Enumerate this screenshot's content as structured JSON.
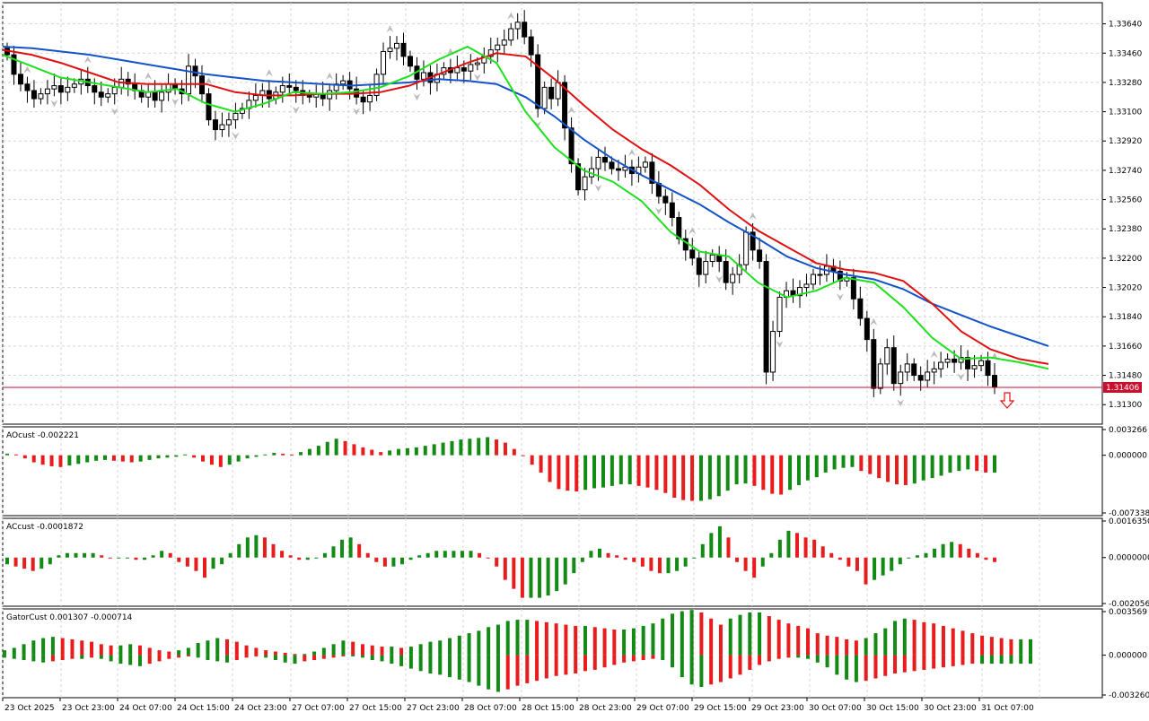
{
  "chart_data": {
    "type": "candlestick",
    "symbol_price_tag": "1.31406",
    "current_price": 1.31406,
    "price_axis": {
      "range": [
        1.3118,
        1.3377
      ],
      "ticks": [
        "1.33640",
        "1.33460",
        "1.33280",
        "1.33100",
        "1.32920",
        "1.32740",
        "1.32560",
        "1.32380",
        "1.32200",
        "1.32020",
        "1.31840",
        "1.31660",
        "1.31480",
        "1.31300"
      ]
    },
    "time_labels": [
      "23 Oct 2025",
      "23 Oct 23:00",
      "24 Oct 07:00",
      "24 Oct 15:00",
      "24 Oct 23:00",
      "27 Oct 07:00",
      "27 Oct 15:00",
      "27 Oct 23:00",
      "28 Oct 07:00",
      "28 Oct 15:00",
      "28 Oct 23:00",
      "29 Oct 07:00",
      "29 Oct 15:00",
      "29 Oct 23:00",
      "30 Oct 07:00",
      "30 Oct 15:00",
      "30 Oct 23:00",
      "31 Oct 07:00"
    ],
    "ohlc_closes": [
      1.3345,
      1.3333,
      1.3327,
      1.3323,
      1.3318,
      1.3321,
      1.3324,
      1.3326,
      1.3322,
      1.3325,
      1.3327,
      1.333,
      1.3326,
      1.3322,
      1.3319,
      1.3321,
      1.3325,
      1.333,
      1.3327,
      1.3323,
      1.3319,
      1.3322,
      1.3317,
      1.3322,
      1.3327,
      1.3324,
      1.3321,
      1.3338,
      1.3332,
      1.3321,
      1.3305,
      1.3299,
      1.3302,
      1.3305,
      1.3309,
      1.3312,
      1.3317,
      1.332,
      1.3323,
      1.3318,
      1.3322,
      1.3326,
      1.3325,
      1.3323,
      1.332,
      1.3319,
      1.3321,
      1.3318,
      1.3323,
      1.3327,
      1.3329,
      1.3324,
      1.3319,
      1.3316,
      1.332,
      1.3333,
      1.3347,
      1.3349,
      1.3352,
      1.3344,
      1.3338,
      1.333,
      1.3334,
      1.3328,
      1.3333,
      1.3337,
      1.3334,
      1.3337,
      1.3335,
      1.3339,
      1.334,
      1.3344,
      1.3348,
      1.3351,
      1.3354,
      1.3361,
      1.3365,
      1.3356,
      1.3345,
      1.3312,
      1.3325,
      1.3318,
      1.3328,
      1.33,
      1.3278,
      1.3262,
      1.327,
      1.3275,
      1.3282,
      1.3279,
      1.3275,
      1.3274,
      1.3276,
      1.3272,
      1.3276,
      1.3279,
      1.3266,
      1.3258,
      1.3254,
      1.3245,
      1.3232,
      1.3225,
      1.322,
      1.321,
      1.3218,
      1.3222,
      1.3218,
      1.3205,
      1.321,
      1.3216,
      1.3236,
      1.3225,
      1.3218,
      1.315,
      1.3175,
      1.3196,
      1.32,
      1.3197,
      1.3202,
      1.3204,
      1.321,
      1.321,
      1.3215,
      1.3212,
      1.3206,
      1.3208,
      1.3195,
      1.3183,
      1.317,
      1.314,
      1.3155,
      1.3165,
      1.3143,
      1.315,
      1.3155,
      1.3148,
      1.3145,
      1.315,
      1.3152,
      1.3156,
      1.3158,
      1.3156,
      1.3159,
      1.3152,
      1.3154,
      1.3157,
      1.3148,
      1.3141
    ],
    "moving_averages": [
      {
        "color": "#1453c8",
        "values": [
          1.335,
          1.3349,
          1.3347,
          1.3345,
          1.3342,
          1.3339,
          1.3336,
          1.3333,
          1.3331,
          1.3329,
          1.3328,
          1.3327,
          1.3326,
          1.3327,
          1.3328,
          1.333,
          1.3329,
          1.3327,
          1.3319,
          1.3307,
          1.3293,
          1.3281,
          1.3271,
          1.3262,
          1.3253,
          1.3242,
          1.3232,
          1.3221,
          1.3214,
          1.321,
          1.3207,
          1.3201,
          1.3192,
          1.3185,
          1.3178,
          1.3172,
          1.3166
        ]
      },
      {
        "color": "#e01010",
        "values": [
          1.3348,
          1.3345,
          1.334,
          1.3334,
          1.3328,
          1.3327,
          1.3327,
          1.3327,
          1.3322,
          1.332,
          1.332,
          1.3321,
          1.3321,
          1.3322,
          1.3326,
          1.3333,
          1.334,
          1.3346,
          1.3344,
          1.333,
          1.3314,
          1.3299,
          1.3287,
          1.3277,
          1.3265,
          1.325,
          1.3237,
          1.3227,
          1.3217,
          1.3213,
          1.3211,
          1.3206,
          1.3192,
          1.3175,
          1.3164,
          1.3158,
          1.3155
        ]
      },
      {
        "color": "#1ee01e",
        "values": [
          1.3345,
          1.3338,
          1.3331,
          1.3328,
          1.3325,
          1.3322,
          1.3324,
          1.3315,
          1.331,
          1.3315,
          1.3322,
          1.3321,
          1.3322,
          1.3325,
          1.3332,
          1.3342,
          1.335,
          1.334,
          1.331,
          1.3288,
          1.3274,
          1.3267,
          1.3255,
          1.3236,
          1.3224,
          1.3221,
          1.3205,
          1.3196,
          1.32,
          1.3208,
          1.3205,
          1.319,
          1.3171,
          1.3158,
          1.3159,
          1.3156,
          1.3152
        ]
      }
    ],
    "subcharts": [
      {
        "label": "AOcust -0.002221",
        "ticks": [
          "0.003266",
          "0.000000",
          "-0.007338"
        ],
        "range": [
          -0.007338,
          0.003266
        ],
        "values": [
          0.0002,
          0.0001,
          -0.0004,
          -0.0009,
          -0.0012,
          -0.0014,
          -0.0015,
          -0.0013,
          -0.0011,
          -0.0009,
          -0.0007,
          -0.0006,
          -0.0007,
          -0.0008,
          -0.0009,
          -0.0008,
          -0.0006,
          -0.0004,
          -0.0003,
          -0.0002,
          0.0001,
          -0.0003,
          -0.0008,
          -0.0012,
          -0.0015,
          -0.0012,
          -0.0008,
          -0.0004,
          -0.0002,
          0.0001,
          0.0003,
          0.0002,
          0.0001,
          0.0004,
          0.0008,
          0.0012,
          0.0017,
          0.0021,
          0.0018,
          0.0014,
          0.001,
          0.0007,
          0.0004,
          0.0006,
          0.0008,
          0.0009,
          0.001,
          0.0012,
          0.0014,
          0.0016,
          0.0018,
          0.002,
          0.0021,
          0.0022,
          0.0023,
          0.002,
          0.0016,
          0.0008,
          0.0,
          -0.0012,
          -0.0022,
          -0.0034,
          -0.0043,
          -0.0045,
          -0.0046,
          -0.0044,
          -0.0042,
          -0.0041,
          -0.0039,
          -0.0037,
          -0.0037,
          -0.0039,
          -0.0041,
          -0.0044,
          -0.0048,
          -0.0054,
          -0.0057,
          -0.0058,
          -0.0058,
          -0.0056,
          -0.0052,
          -0.0045,
          -0.0037,
          -0.0036,
          -0.0039,
          -0.0044,
          -0.0049,
          -0.005,
          -0.0044,
          -0.0038,
          -0.0032,
          -0.0028,
          -0.0022,
          -0.0018,
          -0.0016,
          -0.0015,
          -0.002,
          -0.0024,
          -0.0029,
          -0.0034,
          -0.0037,
          -0.0038,
          -0.0036,
          -0.0032,
          -0.0029,
          -0.0026,
          -0.0022,
          -0.002,
          -0.0018,
          -0.002,
          -0.0022,
          -0.0022
        ]
      },
      {
        "label": "ACcust -0.0001872",
        "ticks": [
          "0.0016350",
          "0.0000000",
          "-0.0020568"
        ],
        "range": [
          -0.0020568,
          0.001635
        ],
        "values": [
          -0.0003,
          -0.0004,
          -0.0005,
          -0.0006,
          -0.0005,
          -0.0003,
          0.0001,
          0.0002,
          0.0002,
          0.0002,
          0.0002,
          0.0001,
          0.0,
          0.0,
          0.0,
          -0.0001,
          -0.0001,
          0.0001,
          0.0003,
          0.0002,
          -0.0002,
          -0.0004,
          -0.0006,
          -0.0009,
          -0.0005,
          -0.0003,
          0.0002,
          0.0006,
          0.0009,
          0.001,
          0.0009,
          0.0006,
          0.0003,
          0.0001,
          -0.0001,
          -0.0001,
          0.0,
          0.0002,
          0.0005,
          0.0008,
          0.0009,
          0.0006,
          0.0002,
          -0.0002,
          -0.0004,
          -0.0004,
          -0.0003,
          -0.0001,
          0.0001,
          0.0002,
          0.0003,
          0.0003,
          0.0003,
          0.0003,
          0.0003,
          0.0002,
          0.0,
          -0.0004,
          -0.001,
          -0.0014,
          -0.0018,
          -0.0018,
          -0.0018,
          -0.0017,
          -0.0015,
          -0.0012,
          -0.0007,
          -0.0002,
          0.0003,
          0.0004,
          0.0002,
          0.0001,
          -0.0001,
          -0.0002,
          -0.0004,
          -0.0006,
          -0.0007,
          -0.0007,
          -0.0006,
          -0.0004,
          0.0,
          0.0006,
          0.0011,
          0.0014,
          0.0009,
          -0.0002,
          -0.0006,
          -0.0009,
          -0.0004,
          0.0002,
          0.0008,
          0.0012,
          0.0011,
          0.0009,
          0.0008,
          0.0005,
          0.0002,
          -0.0001,
          -0.0004,
          -0.0006,
          -0.0012,
          -0.001,
          -0.0008,
          -0.0006,
          -0.0003,
          0.0,
          0.0001,
          0.0002,
          0.0004,
          0.0006,
          0.0007,
          0.0006,
          0.0004,
          0.0002,
          -0.0001,
          -0.0002
        ]
      },
      {
        "label": "GatorCust 0.001307 -0.000714",
        "ticks": [
          "0.003569",
          "0.000000",
          "-0.003260"
        ],
        "range": [
          -0.00326,
          0.003569
        ],
        "upper": [
          0.0004,
          0.0006,
          0.0009,
          0.0012,
          0.0014,
          0.0015,
          0.0014,
          0.0013,
          0.0012,
          0.0011,
          0.0009,
          0.0008,
          0.0008,
          0.0009,
          0.0008,
          0.0006,
          0.0004,
          0.0003,
          0.0004,
          0.0006,
          0.001,
          0.0012,
          0.0014,
          0.0013,
          0.0011,
          0.0008,
          0.0006,
          0.0004,
          0.0003,
          0.0002,
          0.0001,
          0.0001,
          0.0003,
          0.0006,
          0.0009,
          0.0012,
          0.0011,
          0.0009,
          0.0008,
          0.0007,
          0.0007,
          0.0006,
          0.0007,
          0.0009,
          0.0011,
          0.0012,
          0.0014,
          0.0016,
          0.0018,
          0.002,
          0.0023,
          0.0025,
          0.0028,
          0.0029,
          0.0029,
          0.0028,
          0.0027,
          0.0026,
          0.0025,
          0.0024,
          0.0024,
          0.0023,
          0.0022,
          0.0021,
          0.0021,
          0.0022,
          0.0024,
          0.0026,
          0.003,
          0.0034,
          0.0036,
          0.0037,
          0.0035,
          0.003,
          0.0025,
          0.003,
          0.0033,
          0.0035,
          0.0035,
          0.0032,
          0.0029,
          0.0026,
          0.0024,
          0.0022,
          0.0018,
          0.0016,
          0.0015,
          0.0013,
          0.0012,
          0.0014,
          0.0018,
          0.0022,
          0.0028,
          0.003,
          0.0029,
          0.0027,
          0.0026,
          0.0024,
          0.0022,
          0.002,
          0.0018,
          0.0016,
          0.0015,
          0.0014,
          0.0013,
          0.0013,
          0.0013
        ],
        "lower": [
          -0.0002,
          -0.0003,
          -0.0004,
          -0.0005,
          -0.0006,
          -0.0005,
          -0.0004,
          -0.0003,
          -0.0003,
          -0.0002,
          -0.0003,
          -0.0005,
          -0.0007,
          -0.0008,
          -0.0009,
          -0.0007,
          -0.0005,
          -0.0003,
          -0.0002,
          -0.0001,
          -0.0002,
          -0.0004,
          -0.0005,
          -0.0006,
          -0.0004,
          -0.0002,
          -0.0001,
          -0.0002,
          -0.0004,
          -0.0006,
          -0.0007,
          -0.0005,
          -0.0004,
          -0.0003,
          -0.0002,
          -0.0001,
          -0.0001,
          -0.0002,
          -0.0004,
          -0.0005,
          -0.0007,
          -0.0009,
          -0.0011,
          -0.0013,
          -0.0015,
          -0.0016,
          -0.0018,
          -0.002,
          -0.0022,
          -0.0025,
          -0.0028,
          -0.003,
          -0.0028,
          -0.0025,
          -0.0023,
          -0.0021,
          -0.0019,
          -0.0017,
          -0.0016,
          -0.0015,
          -0.0013,
          -0.0012,
          -0.001,
          -0.0008,
          -0.0006,
          -0.0005,
          -0.0004,
          -0.0003,
          -0.0004,
          -0.001,
          -0.0018,
          -0.0024,
          -0.0026,
          -0.0024,
          -0.0022,
          -0.0019,
          -0.0016,
          -0.0012,
          -0.0008,
          -0.0005,
          -0.0003,
          -0.0002,
          -0.0002,
          -0.0003,
          -0.0006,
          -0.001,
          -0.0016,
          -0.002,
          -0.0022,
          -0.0021,
          -0.0019,
          -0.0017,
          -0.0015,
          -0.0014,
          -0.0013,
          -0.0012,
          -0.0011,
          -0.001,
          -0.0009,
          -0.0008,
          -0.0007,
          -0.0007,
          -0.0007,
          -0.0007,
          -0.0007,
          -0.0007,
          -0.0007
        ]
      }
    ],
    "colors": {
      "up": "#ffffff",
      "down": "#000000",
      "bar_green": "#138a13",
      "bar_red": "#e81c1c",
      "grid": "#d4d4d4",
      "price_line": "#c8102e"
    }
  }
}
